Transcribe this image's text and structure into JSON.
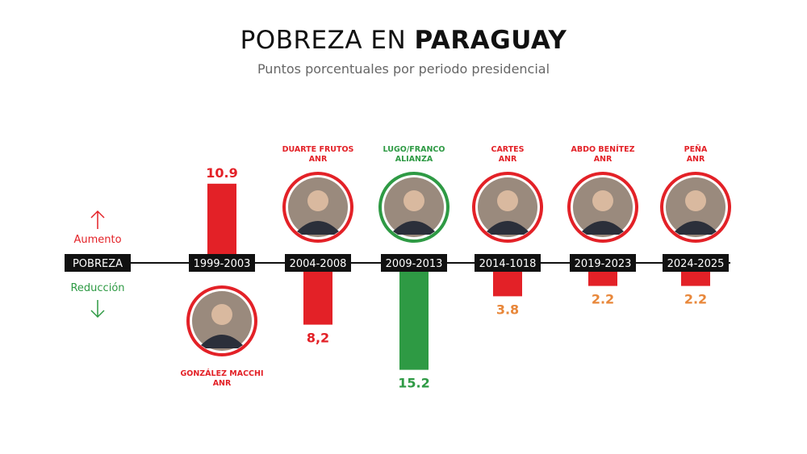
{
  "title": {
    "normal": "POBREZA EN ",
    "bold": "PARAGUAY"
  },
  "subtitle": "Puntos porcentuales por periodo presidencial",
  "legend": {
    "increase": "Aumento",
    "decrease": "Reducción",
    "axis_label": "POBREZA"
  },
  "colors": {
    "red": "#e32127",
    "green": "#2e9a44",
    "orange": "#e8873a",
    "dark": "#111111"
  },
  "chart_data": {
    "type": "bar",
    "categories": [
      "1999-2003",
      "2004-2008",
      "2009-2013",
      "2014-1018",
      "2019-2023",
      "2024-2025"
    ],
    "values": [
      10.9,
      -8.2,
      -15.2,
      -3.8,
      -2.2,
      -2.2
    ],
    "value_labels": [
      "10.9",
      "8,2",
      "15.2",
      "3.8",
      "2.2",
      "2.2"
    ],
    "value_label_colors": [
      "#e32127",
      "#e32127",
      "#2e9a44",
      "#e8873a",
      "#e8873a",
      "#e8873a"
    ],
    "bar_colors": [
      "#e32127",
      "#e32127",
      "#2e9a44",
      "#e32127",
      "#e32127",
      "#e32127"
    ],
    "presidents": [
      {
        "name": "GONZÁLEZ MACCHI",
        "party": "ANR",
        "name_color": "#e32127",
        "ring_color": "#e32127"
      },
      {
        "name": "DUARTE FRUTOS",
        "party": "ANR",
        "name_color": "#e32127",
        "ring_color": "#e32127"
      },
      {
        "name": "LUGO/FRANCO",
        "party": "ALIANZA",
        "name_color": "#2e9a44",
        "ring_color": "#2e9a44"
      },
      {
        "name": "CARTES",
        "party": "ANR",
        "name_color": "#e32127",
        "ring_color": "#e32127"
      },
      {
        "name": "ABDO BENÍTEZ",
        "party": "ANR",
        "name_color": "#e32127",
        "ring_color": "#e32127"
      },
      {
        "name": "PEÑA",
        "party": "ANR",
        "name_color": "#e32127",
        "ring_color": "#e32127"
      }
    ],
    "legend": {
      "position": "left",
      "entries": [
        "Aumento",
        "Reducción"
      ]
    },
    "grid": false
  }
}
